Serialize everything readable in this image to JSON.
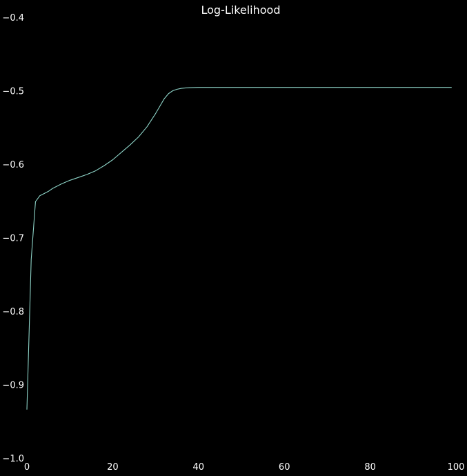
{
  "chart_data": {
    "type": "line",
    "title": "Log-Likelihood",
    "xlabel": "",
    "ylabel": "",
    "xlim": [
      0,
      100
    ],
    "ylim": [
      -1.0,
      -0.4
    ],
    "x_ticks": [
      0,
      20,
      40,
      60,
      80,
      100
    ],
    "y_ticks": [
      -1.0,
      -0.9,
      -0.8,
      -0.7,
      -0.6,
      -0.5,
      -0.4
    ],
    "x_tick_labels": [
      "0",
      "20",
      "40",
      "60",
      "80",
      "100"
    ],
    "y_tick_labels": [
      "−1.0",
      "−0.9",
      "−0.8",
      "−0.7",
      "−0.6",
      "−0.5",
      "−0.4"
    ],
    "grid": false,
    "legend": "none",
    "background_color": "#000000",
    "text_color": "#ffffff",
    "series": [
      {
        "color": "#8dd3c7",
        "x": [
          0,
          1,
          2,
          3,
          4,
          5,
          6,
          8,
          10,
          12,
          14,
          16,
          18,
          20,
          22,
          24,
          26,
          28,
          30,
          31,
          32,
          33,
          34,
          35,
          36,
          37,
          38,
          40,
          45,
          50,
          60,
          70,
          80,
          90,
          99
        ],
        "values": [
          -0.934,
          -0.73,
          -0.651,
          -0.643,
          -0.64,
          -0.637,
          -0.633,
          -0.627,
          -0.622,
          -0.618,
          -0.614,
          -0.609,
          -0.602,
          -0.594,
          -0.584,
          -0.574,
          -0.563,
          -0.549,
          -0.531,
          -0.521,
          -0.511,
          -0.504,
          -0.5,
          -0.498,
          -0.4968,
          -0.4962,
          -0.4958,
          -0.4955,
          -0.4955,
          -0.4955,
          -0.4955,
          -0.4955,
          -0.4955,
          -0.4955,
          -0.4955
        ]
      }
    ]
  }
}
